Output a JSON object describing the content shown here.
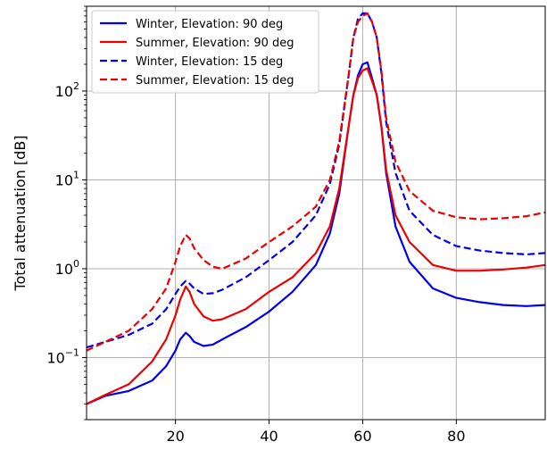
{
  "chart_data": {
    "type": "line",
    "title": "",
    "xlabel": "",
    "ylabel": "Total attenuation [dB]",
    "xlim": [
      1,
      99
    ],
    "ylim": [
      0.02,
      900
    ],
    "yscale": "log",
    "grid": true,
    "legend_position": "top-left",
    "x_ticks": [
      20,
      40,
      60,
      80
    ],
    "x_tick_labels": [
      "20",
      "40",
      "60",
      "80"
    ],
    "y_ticks": [
      0.1,
      1,
      10,
      100
    ],
    "y_tick_labels": [
      {
        "base": "10",
        "exp": "−1"
      },
      {
        "base": "10",
        "exp": "0"
      },
      {
        "base": "10",
        "exp": "1"
      },
      {
        "base": "10",
        "exp": "2"
      }
    ],
    "x": [
      1,
      5,
      10,
      15,
      18,
      20,
      21,
      22.2,
      23,
      24,
      26,
      28,
      30,
      35,
      40,
      45,
      50,
      53,
      55,
      57,
      58,
      59,
      60,
      61,
      62,
      63,
      64,
      65,
      67,
      70,
      75,
      80,
      85,
      90,
      95,
      99
    ],
    "series": [
      {
        "name": "Winter, Elevation: 90 deg",
        "color": "#0000ee",
        "dash": "solid",
        "values": [
          0.03,
          0.037,
          0.042,
          0.055,
          0.08,
          0.12,
          0.16,
          0.19,
          0.175,
          0.15,
          0.135,
          0.14,
          0.16,
          0.22,
          0.33,
          0.55,
          1.1,
          2.5,
          7,
          40,
          90,
          150,
          200,
          210,
          140,
          90,
          40,
          12,
          3,
          1.2,
          0.6,
          0.47,
          0.42,
          0.39,
          0.38,
          0.39
        ]
      },
      {
        "name": "Summer, Elevation: 90 deg",
        "color": "#ee0000",
        "dash": "solid",
        "values": [
          0.03,
          0.038,
          0.05,
          0.09,
          0.16,
          0.3,
          0.45,
          0.63,
          0.55,
          0.4,
          0.29,
          0.26,
          0.27,
          0.35,
          0.55,
          0.8,
          1.5,
          3,
          8,
          40,
          90,
          140,
          170,
          180,
          130,
          90,
          40,
          13,
          4,
          2,
          1.1,
          0.95,
          0.95,
          0.98,
          1.03,
          1.1
        ]
      },
      {
        "name": "Winter, Elevation: 15 deg",
        "color": "#0000ee",
        "dash": "dashed",
        "values": [
          0.13,
          0.15,
          0.18,
          0.24,
          0.35,
          0.52,
          0.63,
          0.73,
          0.68,
          0.6,
          0.52,
          0.53,
          0.58,
          0.8,
          1.25,
          2,
          4,
          9,
          25,
          150,
          400,
          650,
          750,
          750,
          600,
          400,
          160,
          45,
          12,
          4.5,
          2.4,
          1.8,
          1.6,
          1.5,
          1.45,
          1.5
        ]
      },
      {
        "name": "Summer, Elevation: 15 deg",
        "color": "#ee0000",
        "dash": "dashed",
        "values": [
          0.12,
          0.15,
          0.2,
          0.35,
          0.6,
          1.2,
          1.8,
          2.4,
          2.2,
          1.7,
          1.25,
          1.05,
          1.0,
          1.3,
          2.0,
          3,
          5,
          10,
          27,
          150,
          400,
          600,
          700,
          750,
          600,
          400,
          170,
          50,
          16,
          7.5,
          4.5,
          3.8,
          3.6,
          3.7,
          3.9,
          4.3
        ]
      }
    ]
  }
}
